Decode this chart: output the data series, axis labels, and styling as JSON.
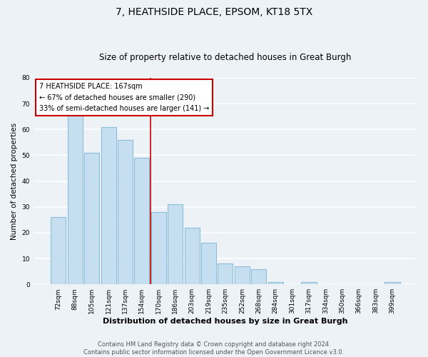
{
  "title": "7, HEATHSIDE PLACE, EPSOM, KT18 5TX",
  "subtitle": "Size of property relative to detached houses in Great Burgh",
  "xlabel": "Distribution of detached houses by size in Great Burgh",
  "ylabel": "Number of detached properties",
  "bar_labels": [
    "72sqm",
    "88sqm",
    "105sqm",
    "121sqm",
    "137sqm",
    "154sqm",
    "170sqm",
    "186sqm",
    "203sqm",
    "219sqm",
    "235sqm",
    "252sqm",
    "268sqm",
    "284sqm",
    "301sqm",
    "317sqm",
    "334sqm",
    "350sqm",
    "366sqm",
    "383sqm",
    "399sqm"
  ],
  "bar_values": [
    26,
    66,
    51,
    61,
    56,
    49,
    28,
    31,
    22,
    16,
    8,
    7,
    6,
    1,
    0,
    1,
    0,
    0,
    0,
    0,
    1
  ],
  "bar_color": "#c6dff0",
  "bar_edge_color": "#8bbcd8",
  "vline_x_idx": 6,
  "vline_color": "#cc0000",
  "ylim": [
    0,
    80
  ],
  "yticks": [
    0,
    10,
    20,
    30,
    40,
    50,
    60,
    70,
    80
  ],
  "annotation_title": "7 HEATHSIDE PLACE: 167sqm",
  "annotation_line1": "← 67% of detached houses are smaller (290)",
  "annotation_line2": "33% of semi-detached houses are larger (141) →",
  "annotation_box_facecolor": "#ffffff",
  "annotation_box_edgecolor": "#cc0000",
  "footer_line1": "Contains HM Land Registry data © Crown copyright and database right 2024.",
  "footer_line2": "Contains public sector information licensed under the Open Government Licence v3.0.",
  "background_color": "#edf2f7",
  "grid_color": "#ffffff",
  "title_fontsize": 10,
  "subtitle_fontsize": 8.5,
  "xlabel_fontsize": 8,
  "ylabel_fontsize": 7.5,
  "tick_fontsize": 6.5,
  "annotation_fontsize": 7,
  "footer_fontsize": 6
}
